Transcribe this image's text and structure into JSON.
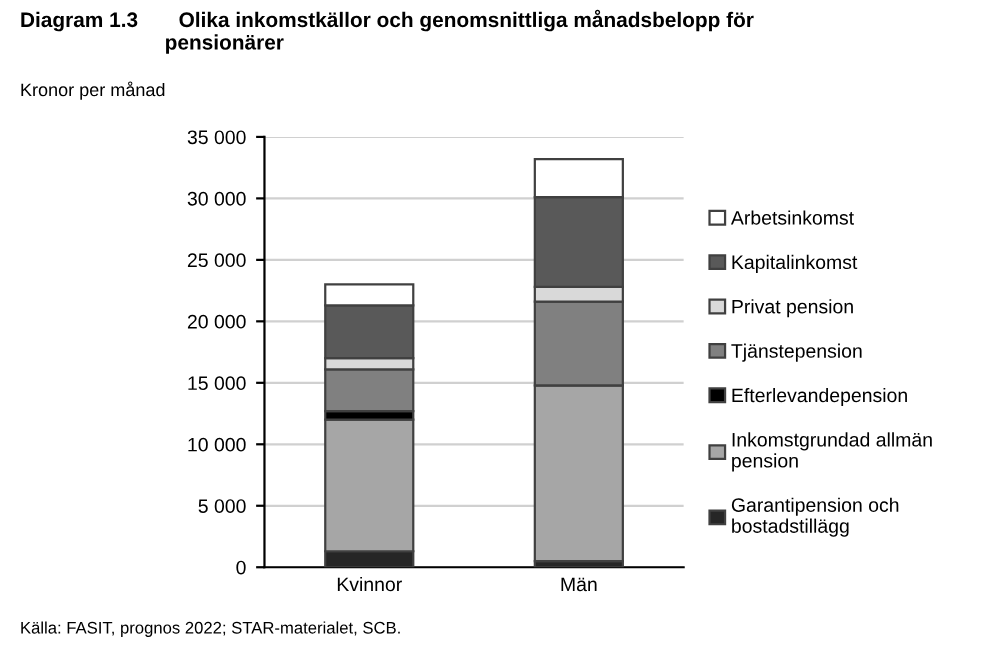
{
  "chart_data": {
    "type": "bar",
    "stacked": true,
    "title": "Diagram 1.3       Olika inkomstkällor och genomsnittliga månadsbelopp för\n                         pensionärer",
    "ylabel": "Kronor per månad",
    "categories": [
      "Kvinnor",
      "Män"
    ],
    "series": [
      {
        "name": "Garantipension och\nbostadstillägg",
        "color": "#262626",
        "values": [
          1300,
          500
        ]
      },
      {
        "name": "Inkomstgrundad allmän\npension",
        "color": "#a6a6a6",
        "values": [
          10700,
          14300
        ]
      },
      {
        "name": "Efterlevandepension",
        "color": "#000000",
        "values": [
          700,
          null
        ]
      },
      {
        "name": "Tjänstepension",
        "color": "#808080",
        "values": [
          3400,
          6800
        ]
      },
      {
        "name": "Privat pension",
        "color": "#d9d9d9",
        "values": [
          900,
          1200
        ]
      },
      {
        "name": "Kapitalinkomst",
        "color": "#595959",
        "values": [
          4300,
          7300
        ]
      },
      {
        "name": "Arbetsinkomst",
        "color": "#ffffff",
        "values": [
          1700,
          3100
        ]
      }
    ],
    "ylim": [
      0,
      35000
    ],
    "yticks": [
      {
        "value": 0,
        "label": "0"
      },
      {
        "value": 5000,
        "label": "5 000"
      },
      {
        "value": 10000,
        "label": "10 000"
      },
      {
        "value": 15000,
        "label": "15 000"
      },
      {
        "value": 20000,
        "label": "20 000"
      },
      {
        "value": 25000,
        "label": "25 000"
      },
      {
        "value": 30000,
        "label": "30 000"
      },
      {
        "value": 35000,
        "label": "35 000"
      }
    ],
    "grid": "y",
    "legend": "right",
    "annotations": [
      "Källa: FASIT, prognos 2022; STAR-materialet, SCB."
    ]
  }
}
